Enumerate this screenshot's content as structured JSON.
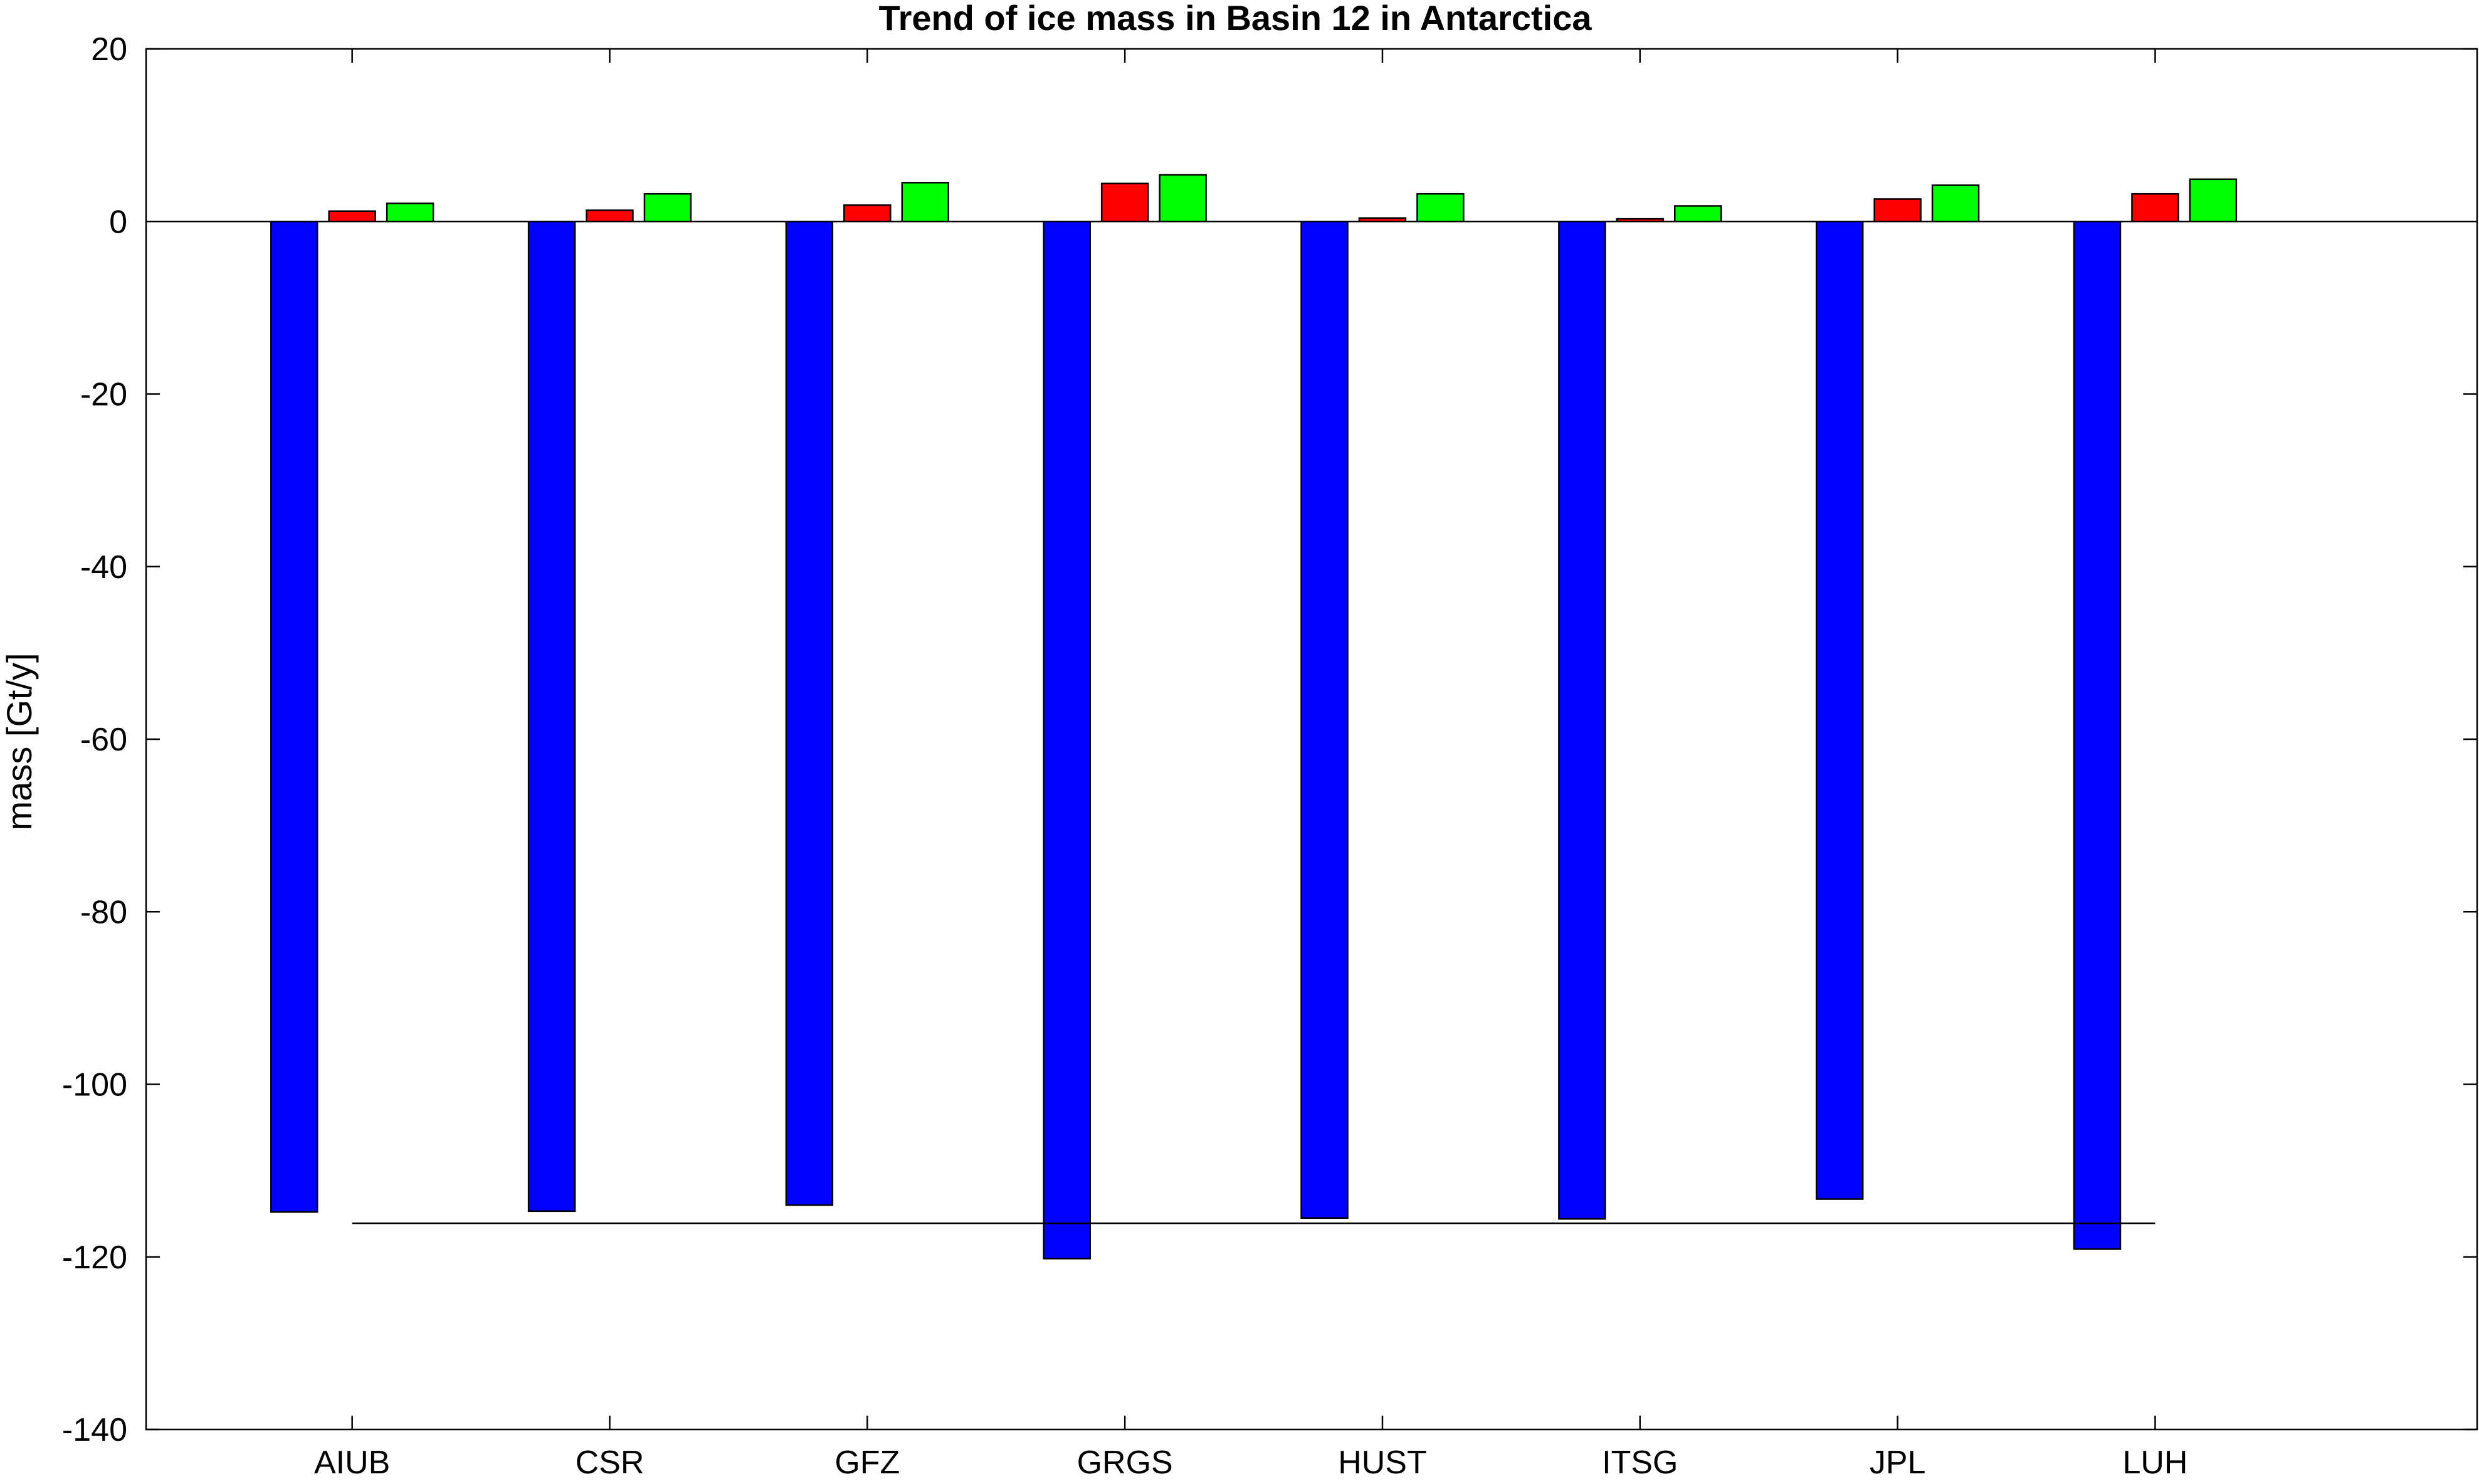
{
  "chart_data": {
    "type": "bar",
    "title": "Trend of ice mass in Basin 12 in Antarctica",
    "xlabel": "",
    "ylabel": "mass [Gt/y]",
    "categories": [
      "AIUB",
      "CSR",
      "GFZ",
      "GRGS",
      "HUST",
      "ITSG",
      "JPL",
      "LUH"
    ],
    "ylim": [
      -140,
      20
    ],
    "xlim": [
      0.2,
      9.25
    ],
    "yticks": [
      -140,
      -120,
      -100,
      -80,
      -60,
      -40,
      -20,
      0,
      20
    ],
    "grid": false,
    "legend": "none",
    "series": [
      {
        "color": "#0000ff",
        "values": [
          -114.8,
          -114.7,
          -114.0,
          -120.2,
          -115.5,
          -115.6,
          -113.3,
          -119.1
        ]
      },
      {
        "color": "#ff0000",
        "values": [
          1.2,
          1.3,
          1.9,
          4.4,
          0.4,
          0.3,
          2.6,
          3.2
        ]
      },
      {
        "color": "#00ff00",
        "values": [
          2.1,
          3.2,
          4.5,
          5.4,
          3.2,
          1.8,
          4.2,
          4.9
        ]
      }
    ],
    "reference_line": {
      "value": -116.1,
      "from_category": "AIUB",
      "to_category": "LUH",
      "color": "#000000"
    }
  }
}
